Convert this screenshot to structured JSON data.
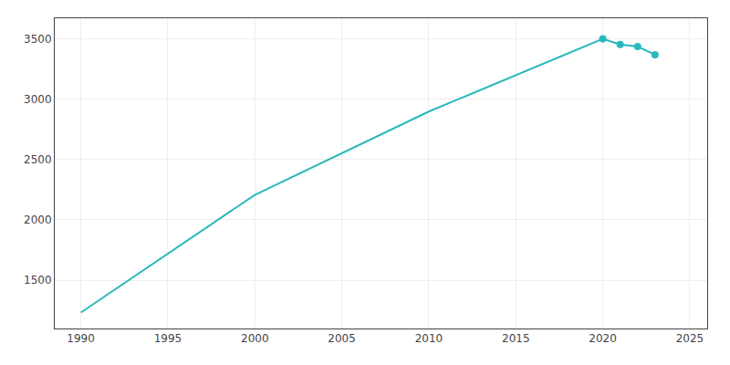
{
  "chart_data": {
    "type": "line",
    "x": [
      1990,
      2000,
      2010,
      2020,
      2021,
      2022,
      2023
    ],
    "series": [
      {
        "type": "line",
        "line_style": "solid",
        "color": "#29b8bc",
        "values": [
          1232,
          2207,
          2897,
          3499,
          3453,
          3435,
          3368
        ]
      },
      {
        "type": "scatter",
        "marker": "circle",
        "color": "#29b8bc",
        "values": [
          null,
          null,
          null,
          3499,
          3453,
          3435,
          3368
        ]
      }
    ],
    "xlim": [
      1988.5,
      2026
    ],
    "ylim": [
      1100,
      3670
    ],
    "xticks": [
      1990,
      1995,
      2000,
      2005,
      2010,
      2015,
      2020,
      2025
    ],
    "yticks": [
      1500,
      2000,
      2500,
      3000,
      3500
    ],
    "grid": true
  }
}
